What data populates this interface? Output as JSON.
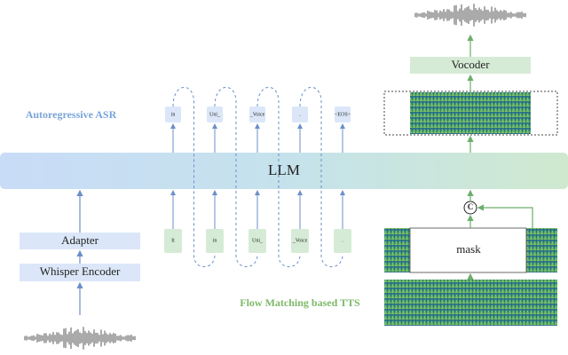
{
  "labels": {
    "asr_title": "Autoregressive ASR",
    "tts_title": "Flow Matching based TTS",
    "llm": "LLM",
    "adapter": "Adapter",
    "encoder": "Whisper Encoder",
    "vocoder": "Vocoder",
    "mask": "mask",
    "concat": "C"
  },
  "asr_tokens": {
    "outputs": [
      "in",
      "Uni_",
      "_Voice",
      ".",
      "<EOS>"
    ],
    "inputs": [
      "It",
      "in",
      "Uni_",
      "_Voice",
      "."
    ]
  }
}
